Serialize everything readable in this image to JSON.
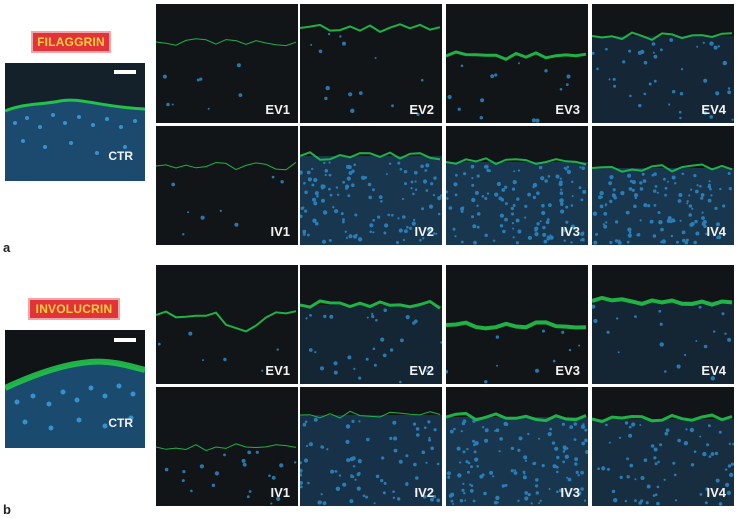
{
  "panel_a": {
    "letter": "a",
    "stain_label": "FILAGGRIN",
    "control_label": "CTR",
    "tiles": [
      {
        "label": "EV1"
      },
      {
        "label": "EV2"
      },
      {
        "label": "EV3"
      },
      {
        "label": "EV4"
      },
      {
        "label": "IV1"
      },
      {
        "label": "IV2"
      },
      {
        "label": "IV3"
      },
      {
        "label": "IV4"
      }
    ]
  },
  "panel_b": {
    "letter": "b",
    "stain_label": "INVOLUCRIN",
    "control_label": "CTR",
    "tiles": [
      {
        "label": "EV1"
      },
      {
        "label": "EV2"
      },
      {
        "label": "EV3"
      },
      {
        "label": "EV4"
      },
      {
        "label": "IV1"
      },
      {
        "label": "IV2"
      },
      {
        "label": "IV3"
      },
      {
        "label": "IV4"
      }
    ]
  },
  "colors": {
    "stain_green": "#22c24a",
    "nuclei_blue": "#2f8fd0",
    "badge_red": "#e2323a",
    "badge_text": "#ffd23a"
  }
}
